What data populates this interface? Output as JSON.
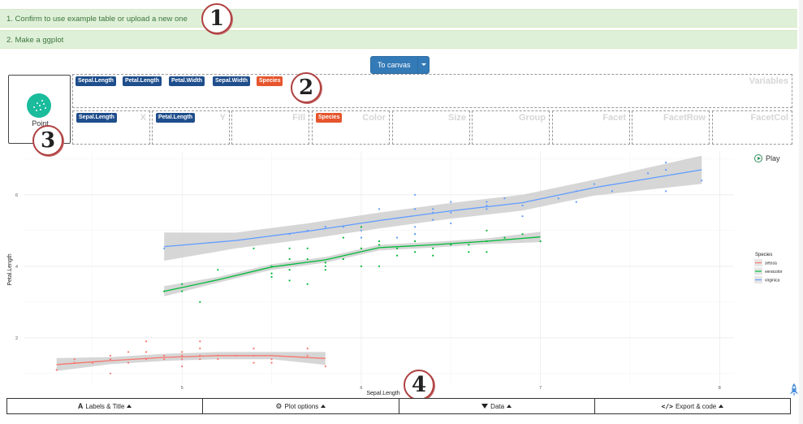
{
  "steps": [
    {
      "label": "1. Confirm to use example table or upload a new one"
    },
    {
      "label": "2. Make a ggplot"
    }
  ],
  "markers": [
    "1",
    "2",
    "3",
    "4"
  ],
  "to_canvas": {
    "label": "To canvas"
  },
  "geom": {
    "label": "Point",
    "icon": "scatter-icon",
    "color": "#1abc9c"
  },
  "variables": {
    "label": "Variables",
    "chips": [
      {
        "text": "Sepal.Length",
        "type": "numeric"
      },
      {
        "text": "Petal.Length",
        "type": "numeric"
      },
      {
        "text": "Petal.Width",
        "type": "numeric"
      },
      {
        "text": "Sepal.Width",
        "type": "numeric"
      },
      {
        "text": "Species",
        "type": "factor"
      }
    ]
  },
  "aes_zones": [
    {
      "label": "X",
      "chip": "Sepal.Length",
      "chip_type": "numeric"
    },
    {
      "label": "Y",
      "chip": "Petal.Length",
      "chip_type": "numeric"
    },
    {
      "label": "Fill",
      "chip": "",
      "chip_type": ""
    },
    {
      "label": "Color",
      "chip": "Species",
      "chip_type": "factor"
    },
    {
      "label": "Size",
      "chip": "",
      "chip_type": ""
    },
    {
      "label": "Group",
      "chip": "",
      "chip_type": ""
    },
    {
      "label": "Facet",
      "chip": "",
      "chip_type": ""
    },
    {
      "label": "FacetRow",
      "chip": "",
      "chip_type": ""
    },
    {
      "label": "FacetCol",
      "chip": "",
      "chip_type": ""
    }
  ],
  "colors": {
    "numeric_chip": "#1f4e8c",
    "factor_chip": "#e6552d",
    "step_bg": "#dff0d8",
    "step_text": "#3c763d",
    "button_primary": "#337ab7"
  },
  "play": {
    "label": "Play",
    "icon": "play-circle-icon"
  },
  "chart_data": {
    "type": "scatter",
    "xlabel": "Sepal.Length",
    "ylabel": "Petal.Length",
    "xlim": [
      4.3,
      7.9
    ],
    "ylim": [
      1.0,
      6.9
    ],
    "xticks": [
      5,
      6,
      7,
      8
    ],
    "yticks": [
      2,
      4,
      6
    ],
    "grid": true,
    "smooth": "loess with confidence band",
    "legend": {
      "title": "Species",
      "position": "right"
    },
    "series": [
      {
        "name": "setosa",
        "color": "#f8766d",
        "points": [
          [
            4.3,
            1.1
          ],
          [
            4.4,
            1.3
          ],
          [
            4.4,
            1.4
          ],
          [
            4.5,
            1.3
          ],
          [
            4.6,
            1.4
          ],
          [
            4.6,
            1.5
          ],
          [
            4.6,
            1.0
          ],
          [
            4.7,
            1.3
          ],
          [
            4.7,
            1.6
          ],
          [
            4.8,
            1.6
          ],
          [
            4.8,
            1.4
          ],
          [
            4.8,
            1.9
          ],
          [
            4.9,
            1.4
          ],
          [
            4.9,
            1.5
          ],
          [
            5.0,
            1.4
          ],
          [
            5.0,
            1.5
          ],
          [
            5.0,
            1.6
          ],
          [
            5.0,
            1.2
          ],
          [
            5.1,
            1.4
          ],
          [
            5.1,
            1.5
          ],
          [
            5.1,
            1.7
          ],
          [
            5.1,
            1.9
          ],
          [
            5.2,
            1.5
          ],
          [
            5.2,
            1.4
          ],
          [
            5.3,
            1.5
          ],
          [
            5.4,
            1.7
          ],
          [
            5.4,
            1.5
          ],
          [
            5.4,
            1.3
          ],
          [
            5.5,
            1.4
          ],
          [
            5.5,
            1.3
          ],
          [
            5.7,
            1.5
          ],
          [
            5.7,
            1.7
          ],
          [
            5.8,
            1.2
          ]
        ],
        "smooth": [
          [
            4.3,
            1.25
          ],
          [
            4.6,
            1.36
          ],
          [
            4.9,
            1.45
          ],
          [
            5.2,
            1.5
          ],
          [
            5.5,
            1.5
          ],
          [
            5.8,
            1.42
          ]
        ]
      },
      {
        "name": "versicolor",
        "color": "#00ba38",
        "points": [
          [
            4.9,
            3.3
          ],
          [
            5.0,
            3.5
          ],
          [
            5.0,
            3.3
          ],
          [
            5.1,
            3.0
          ],
          [
            5.2,
            3.9
          ],
          [
            5.4,
            4.5
          ],
          [
            5.5,
            4.0
          ],
          [
            5.5,
            3.8
          ],
          [
            5.5,
            3.7
          ],
          [
            5.6,
            4.5
          ],
          [
            5.6,
            3.6
          ],
          [
            5.6,
            3.9
          ],
          [
            5.6,
            4.2
          ],
          [
            5.7,
            4.5
          ],
          [
            5.7,
            3.5
          ],
          [
            5.7,
            4.2
          ],
          [
            5.8,
            4.1
          ],
          [
            5.8,
            3.9
          ],
          [
            5.8,
            4.0
          ],
          [
            5.9,
            4.8
          ],
          [
            5.9,
            4.2
          ],
          [
            6.0,
            4.5
          ],
          [
            6.0,
            4.0
          ],
          [
            6.0,
            4.5
          ],
          [
            6.0,
            5.1
          ],
          [
            6.1,
            4.7
          ],
          [
            6.1,
            4.0
          ],
          [
            6.1,
            4.6
          ],
          [
            6.2,
            4.3
          ],
          [
            6.2,
            4.5
          ],
          [
            6.3,
            4.7
          ],
          [
            6.3,
            4.9
          ],
          [
            6.3,
            4.4
          ],
          [
            6.4,
            4.5
          ],
          [
            6.4,
            4.3
          ],
          [
            6.5,
            4.6
          ],
          [
            6.6,
            4.6
          ],
          [
            6.6,
            4.4
          ],
          [
            6.7,
            4.7
          ],
          [
            6.7,
            4.4
          ],
          [
            6.7,
            5.0
          ],
          [
            6.8,
            4.8
          ],
          [
            6.9,
            4.9
          ],
          [
            7.0,
            4.7
          ]
        ],
        "smooth": [
          [
            4.9,
            3.3
          ],
          [
            5.2,
            3.62
          ],
          [
            5.5,
            3.98
          ],
          [
            5.8,
            4.18
          ],
          [
            6.1,
            4.52
          ],
          [
            6.4,
            4.6
          ],
          [
            6.7,
            4.7
          ],
          [
            7.0,
            4.82
          ]
        ]
      },
      {
        "name": "virginica",
        "color": "#619cff",
        "points": [
          [
            4.9,
            4.5
          ],
          [
            5.6,
            4.9
          ],
          [
            5.7,
            5.0
          ],
          [
            5.8,
            5.1
          ],
          [
            5.8,
            5.1
          ],
          [
            5.9,
            5.1
          ],
          [
            6.0,
            5.0
          ],
          [
            6.0,
            4.8
          ],
          [
            6.1,
            5.6
          ],
          [
            6.2,
            4.8
          ],
          [
            6.3,
            6.0
          ],
          [
            6.3,
            5.1
          ],
          [
            6.3,
            5.6
          ],
          [
            6.3,
            4.9
          ],
          [
            6.4,
            5.3
          ],
          [
            6.4,
            5.5
          ],
          [
            6.4,
            5.6
          ],
          [
            6.5,
            5.8
          ],
          [
            6.5,
            5.5
          ],
          [
            6.5,
            5.2
          ],
          [
            6.7,
            5.7
          ],
          [
            6.7,
            5.8
          ],
          [
            6.7,
            5.6
          ],
          [
            6.8,
            5.9
          ],
          [
            6.9,
            5.4
          ],
          [
            6.9,
            5.7
          ],
          [
            7.1,
            5.9
          ],
          [
            7.2,
            6.1
          ],
          [
            7.2,
            5.8
          ],
          [
            7.3,
            6.3
          ],
          [
            7.4,
            6.1
          ],
          [
            7.6,
            6.6
          ],
          [
            7.7,
            6.7
          ],
          [
            7.7,
            6.9
          ],
          [
            7.7,
            6.1
          ],
          [
            7.9,
            6.4
          ]
        ],
        "smooth": [
          [
            4.9,
            4.55
          ],
          [
            5.3,
            4.72
          ],
          [
            5.7,
            4.98
          ],
          [
            6.1,
            5.28
          ],
          [
            6.5,
            5.55
          ],
          [
            6.9,
            5.78
          ],
          [
            7.3,
            6.2
          ],
          [
            7.9,
            6.7
          ]
        ]
      }
    ]
  },
  "bottom_tabs": [
    {
      "label": "Labels & Title",
      "icon": "font-icon"
    },
    {
      "label": "Plot options",
      "icon": "cogs-icon"
    },
    {
      "label": "Data",
      "icon": "filter-icon"
    },
    {
      "label": "Export & code",
      "icon": "code-icon"
    }
  ]
}
